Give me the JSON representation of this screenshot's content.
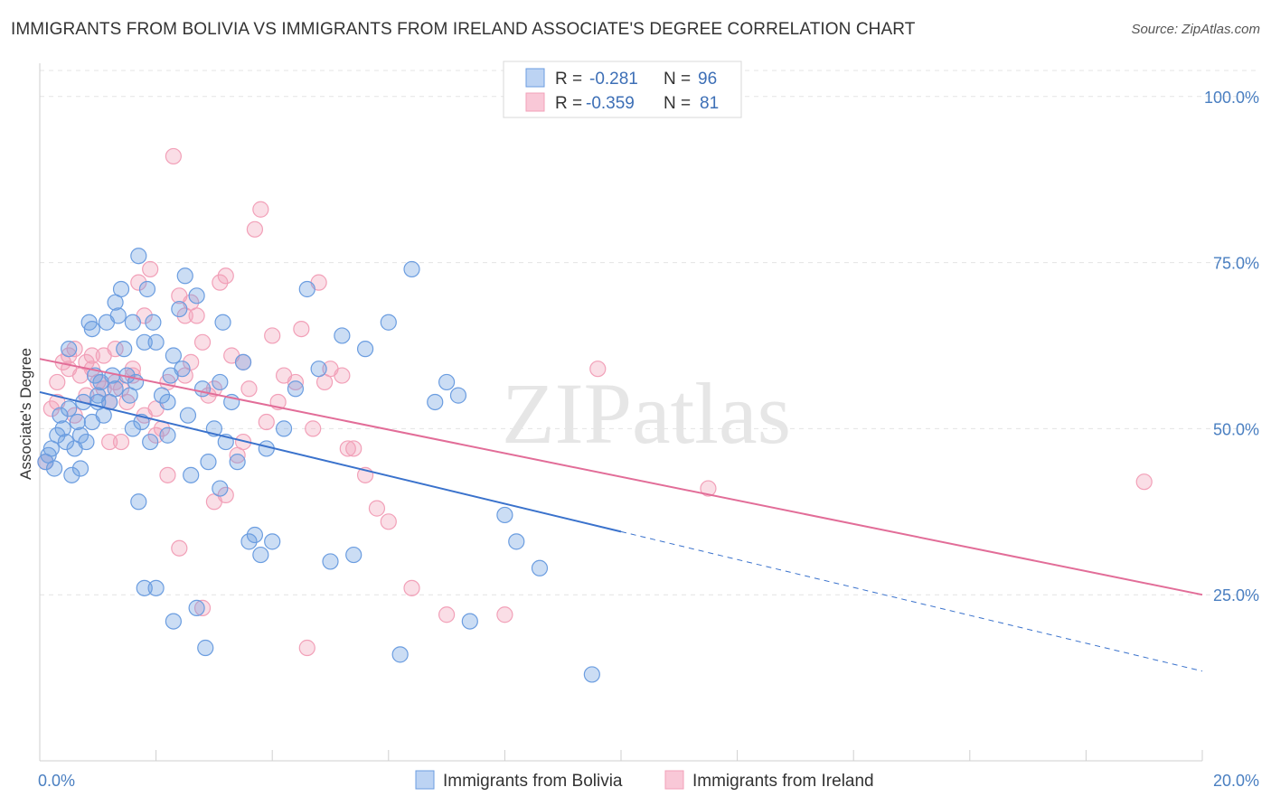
{
  "title": "IMMIGRANTS FROM BOLIVIA VS IMMIGRANTS FROM IRELAND ASSOCIATE'S DEGREE CORRELATION CHART",
  "source": "Source: ZipAtlas.com",
  "watermark": "ZIPatlas",
  "chart_data": {
    "type": "scatter",
    "ylabel": "Associate's Degree",
    "xlim": [
      0,
      20
    ],
    "ylim": [
      0,
      105
    ],
    "x_tick_labels": [
      "0.0%",
      "20.0%"
    ],
    "y_ticks": [
      25,
      50,
      75,
      100
    ],
    "y_tick_labels": [
      "25.0%",
      "50.0%",
      "75.0%",
      "100.0%"
    ],
    "grid": true,
    "legend_position": "top-center",
    "colors": {
      "bolivia": "#6b9de0",
      "ireland": "#f2a0b8",
      "bolivia_line": "#3a72cc",
      "ireland_line": "#e26d98"
    },
    "stats": [
      {
        "r_label": "R =",
        "r": "-0.281",
        "n_label": "N =",
        "n": "96"
      },
      {
        "r_label": "R =",
        "r": "-0.359",
        "n_label": "N =",
        "n": "81"
      }
    ],
    "series": [
      {
        "name": "Immigrants from Bolivia",
        "trend": {
          "x": [
            0,
            10
          ],
          "y": [
            55.5,
            34.5
          ],
          "dashed_to": [
            20,
            13.5
          ]
        },
        "points": [
          [
            0.1,
            45
          ],
          [
            0.15,
            46
          ],
          [
            0.2,
            47
          ],
          [
            0.25,
            44
          ],
          [
            0.3,
            49
          ],
          [
            0.35,
            52
          ],
          [
            0.4,
            50
          ],
          [
            0.45,
            48
          ],
          [
            0.5,
            53
          ],
          [
            0.55,
            43
          ],
          [
            0.6,
            47
          ],
          [
            0.65,
            51
          ],
          [
            0.7,
            49
          ],
          [
            0.75,
            54
          ],
          [
            0.8,
            48
          ],
          [
            0.85,
            66
          ],
          [
            0.9,
            65
          ],
          [
            0.95,
            58
          ],
          [
            1.0,
            55
          ],
          [
            1.05,
            57
          ],
          [
            1.1,
            52
          ],
          [
            1.15,
            66
          ],
          [
            1.2,
            54
          ],
          [
            1.25,
            58
          ],
          [
            1.3,
            69
          ],
          [
            1.35,
            67
          ],
          [
            1.4,
            71
          ],
          [
            1.45,
            62
          ],
          [
            1.5,
            58
          ],
          [
            1.55,
            55
          ],
          [
            1.6,
            66
          ],
          [
            1.65,
            57
          ],
          [
            1.7,
            76
          ],
          [
            1.75,
            51
          ],
          [
            1.8,
            63
          ],
          [
            1.85,
            71
          ],
          [
            1.9,
            48
          ],
          [
            1.95,
            66
          ],
          [
            2.0,
            63
          ],
          [
            2.1,
            55
          ],
          [
            2.2,
            54
          ],
          [
            2.25,
            58
          ],
          [
            2.3,
            61
          ],
          [
            2.4,
            68
          ],
          [
            2.45,
            59
          ],
          [
            2.5,
            73
          ],
          [
            2.55,
            52
          ],
          [
            2.6,
            43
          ],
          [
            2.7,
            70
          ],
          [
            2.8,
            56
          ],
          [
            2.9,
            45
          ],
          [
            3.0,
            50
          ],
          [
            3.1,
            57
          ],
          [
            3.15,
            66
          ],
          [
            3.2,
            48
          ],
          [
            3.3,
            54
          ],
          [
            3.4,
            45
          ],
          [
            3.5,
            60
          ],
          [
            3.6,
            33
          ],
          [
            3.7,
            34
          ],
          [
            3.8,
            31
          ],
          [
            3.9,
            47
          ],
          [
            4.0,
            33
          ],
          [
            4.2,
            50
          ],
          [
            4.4,
            56
          ],
          [
            4.6,
            71
          ],
          [
            4.8,
            59
          ],
          [
            5.0,
            30
          ],
          [
            5.2,
            64
          ],
          [
            5.4,
            31
          ],
          [
            5.6,
            62
          ],
          [
            6.0,
            66
          ],
          [
            6.2,
            16
          ],
          [
            6.8,
            54
          ],
          [
            7.0,
            57
          ],
          [
            7.2,
            55
          ],
          [
            7.4,
            21
          ],
          [
            8.0,
            37
          ],
          [
            8.2,
            33
          ],
          [
            8.6,
            29
          ],
          [
            1.7,
            39
          ],
          [
            1.8,
            26
          ],
          [
            2.0,
            26
          ],
          [
            2.3,
            21
          ],
          [
            2.7,
            23
          ],
          [
            2.85,
            17
          ],
          [
            3.1,
            41
          ],
          [
            1.0,
            54
          ],
          [
            1.3,
            56
          ],
          [
            0.7,
            44
          ],
          [
            9.5,
            13
          ],
          [
            6.4,
            74
          ],
          [
            0.5,
            62
          ],
          [
            0.9,
            51
          ],
          [
            1.6,
            50
          ],
          [
            2.2,
            49
          ]
        ]
      },
      {
        "name": "Immigrants from Ireland",
        "trend": {
          "x": [
            0,
            20
          ],
          "y": [
            60.5,
            25
          ]
        },
        "points": [
          [
            0.1,
            45
          ],
          [
            0.2,
            53
          ],
          [
            0.3,
            57
          ],
          [
            0.4,
            60
          ],
          [
            0.5,
            61
          ],
          [
            0.6,
            62
          ],
          [
            0.7,
            58
          ],
          [
            0.8,
            60
          ],
          [
            0.9,
            59
          ],
          [
            1.0,
            57
          ],
          [
            1.1,
            61
          ],
          [
            1.2,
            54
          ],
          [
            1.3,
            62
          ],
          [
            1.4,
            56
          ],
          [
            1.5,
            54
          ],
          [
            1.6,
            59
          ],
          [
            1.7,
            72
          ],
          [
            1.8,
            67
          ],
          [
            1.9,
            74
          ],
          [
            2.0,
            49
          ],
          [
            2.1,
            50
          ],
          [
            2.2,
            57
          ],
          [
            2.3,
            91
          ],
          [
            2.4,
            70
          ],
          [
            2.5,
            58
          ],
          [
            2.6,
            69
          ],
          [
            2.7,
            67
          ],
          [
            2.8,
            63
          ],
          [
            2.9,
            55
          ],
          [
            3.0,
            56
          ],
          [
            3.1,
            72
          ],
          [
            3.2,
            73
          ],
          [
            3.3,
            61
          ],
          [
            3.4,
            46
          ],
          [
            3.5,
            48
          ],
          [
            3.6,
            56
          ],
          [
            3.7,
            80
          ],
          [
            3.8,
            83
          ],
          [
            3.9,
            51
          ],
          [
            4.0,
            64
          ],
          [
            4.2,
            58
          ],
          [
            4.4,
            57
          ],
          [
            4.5,
            65
          ],
          [
            4.7,
            50
          ],
          [
            4.8,
            72
          ],
          [
            5.0,
            59
          ],
          [
            5.2,
            58
          ],
          [
            5.4,
            47
          ],
          [
            5.6,
            43
          ],
          [
            5.8,
            38
          ],
          [
            6.0,
            36
          ],
          [
            6.4,
            26
          ],
          [
            7.0,
            22
          ],
          [
            8.0,
            22
          ],
          [
            9.6,
            59
          ],
          [
            11.5,
            41
          ],
          [
            19.0,
            42
          ],
          [
            2.2,
            43
          ],
          [
            2.4,
            32
          ],
          [
            2.8,
            23
          ],
          [
            3.0,
            39
          ],
          [
            3.2,
            40
          ],
          [
            4.6,
            17
          ],
          [
            1.2,
            48
          ],
          [
            1.4,
            48
          ],
          [
            0.3,
            54
          ],
          [
            0.5,
            59
          ],
          [
            0.9,
            61
          ],
          [
            1.3,
            57
          ],
          [
            1.6,
            58
          ],
          [
            2.0,
            53
          ],
          [
            2.6,
            60
          ],
          [
            3.5,
            60
          ],
          [
            4.1,
            54
          ],
          [
            4.9,
            57
          ],
          [
            5.3,
            47
          ],
          [
            2.5,
            67
          ],
          [
            1.8,
            52
          ],
          [
            0.8,
            55
          ],
          [
            1.1,
            56
          ],
          [
            0.6,
            52
          ]
        ]
      }
    ]
  }
}
